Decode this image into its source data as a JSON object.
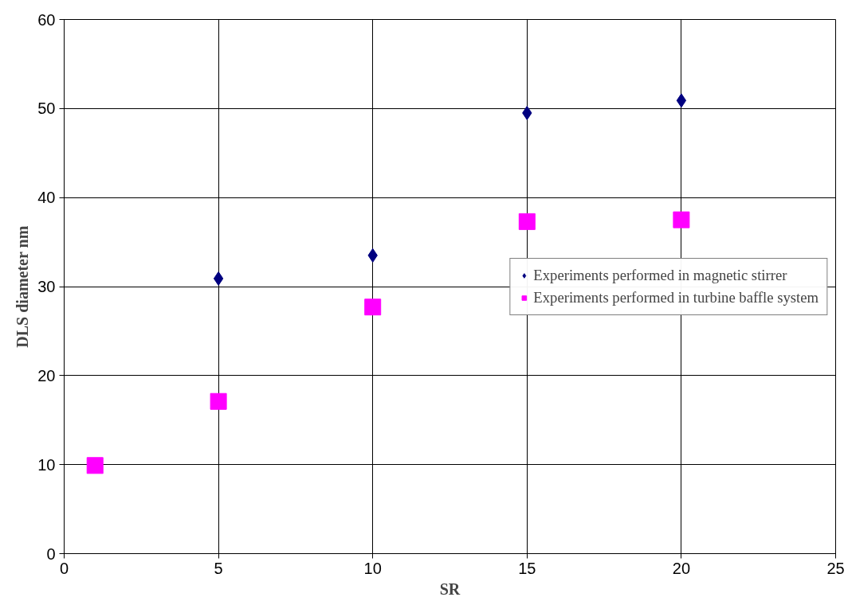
{
  "chart_data": {
    "type": "scatter",
    "xlabel": "SR",
    "ylabel": "DLS diameter nm",
    "xlim": [
      0,
      25
    ],
    "ylim": [
      0,
      60
    ],
    "xticks": [
      0,
      5,
      10,
      15,
      20,
      25
    ],
    "yticks": [
      0,
      10,
      20,
      30,
      40,
      50,
      60
    ],
    "grid": true,
    "legend": "right",
    "series": [
      {
        "name": "Experiments performed in magnetic stirrer",
        "color": "#000080",
        "marker": "diamond",
        "x": [
          5,
          10,
          15,
          20
        ],
        "values": [
          30.9,
          33.5,
          49.5,
          50.9
        ]
      },
      {
        "name": "Experiments performed in turbine baffle system",
        "color": "#ff00ff",
        "marker": "square",
        "x": [
          1,
          5,
          10,
          15,
          20
        ],
        "values": [
          9.9,
          17.1,
          27.7,
          37.3,
          37.5
        ]
      }
    ]
  }
}
